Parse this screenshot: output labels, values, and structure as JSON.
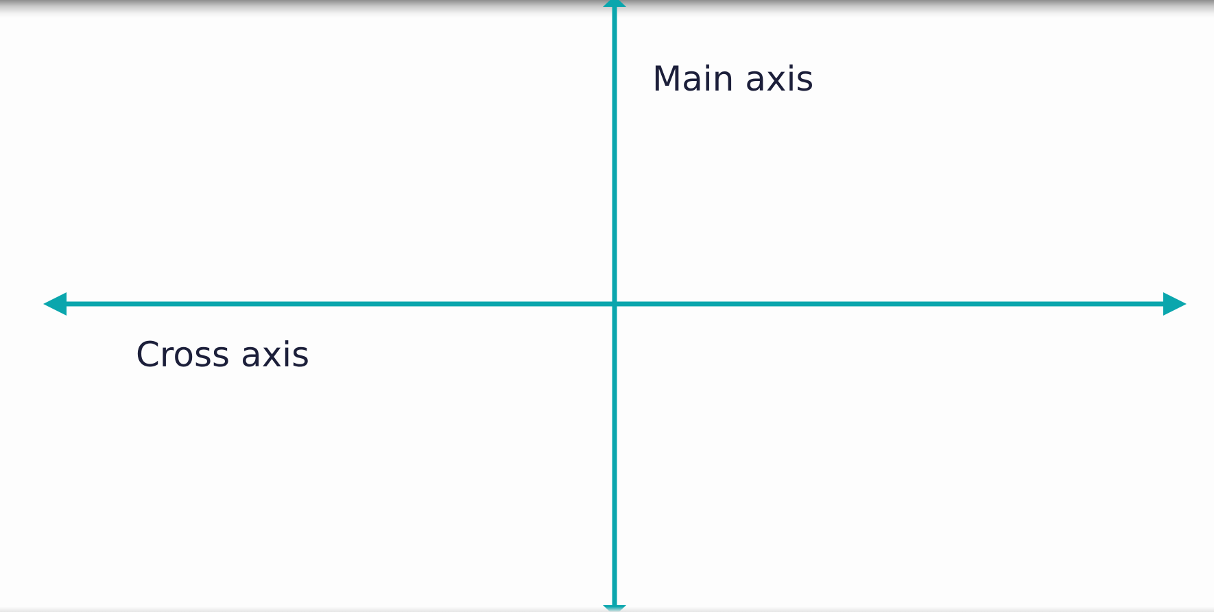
{
  "diagram": {
    "main_axis_label": "Main axis",
    "cross_axis_label": "Cross axis"
  },
  "colors": {
    "axis": "#0aa6ad",
    "text": "#1c1f3a",
    "background": "#fdfdfd"
  }
}
